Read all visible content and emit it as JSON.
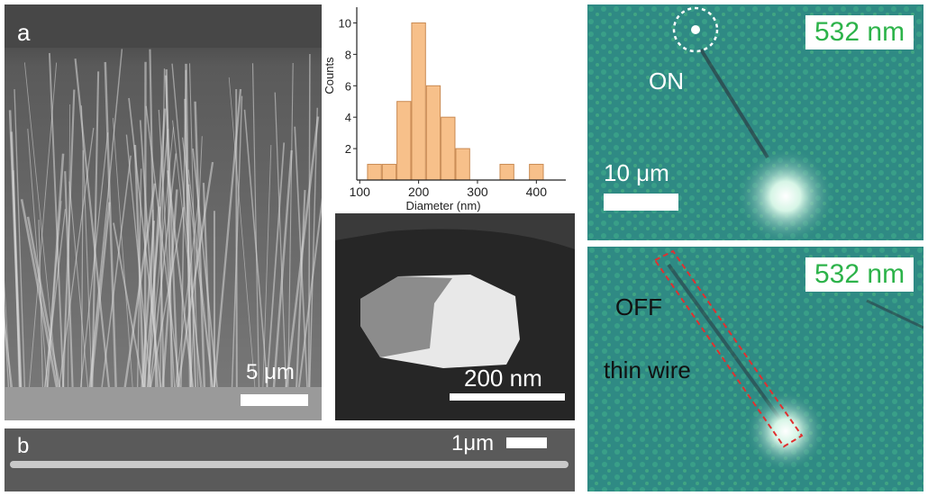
{
  "panel_a": {
    "letter": "a",
    "scale": "5 μm"
  },
  "panel_b": {
    "letter": "b",
    "scale": "1μm"
  },
  "tem": {
    "scale": "200 nm"
  },
  "optical_on": {
    "wavelength": "532 nm",
    "state": "ON",
    "scale": "10 μm"
  },
  "optical_off": {
    "wavelength": "532 nm",
    "state": "OFF",
    "note": "thin wire"
  },
  "chart_data": {
    "type": "bar",
    "xlabel": "Diameter (nm)",
    "ylabel": "Counts",
    "x": [
      125,
      150,
      175,
      200,
      225,
      250,
      275,
      300,
      350,
      400
    ],
    "values": [
      1,
      1,
      5,
      10,
      6,
      4,
      2,
      0,
      1,
      1
    ],
    "bin_width": 25,
    "xlim": [
      95,
      450
    ],
    "ylim": [
      0,
      11
    ],
    "xticks": [
      100,
      200,
      300,
      400
    ],
    "yticks": [
      2,
      4,
      6,
      8,
      10
    ],
    "grid": false,
    "color": "#f7c08a"
  }
}
